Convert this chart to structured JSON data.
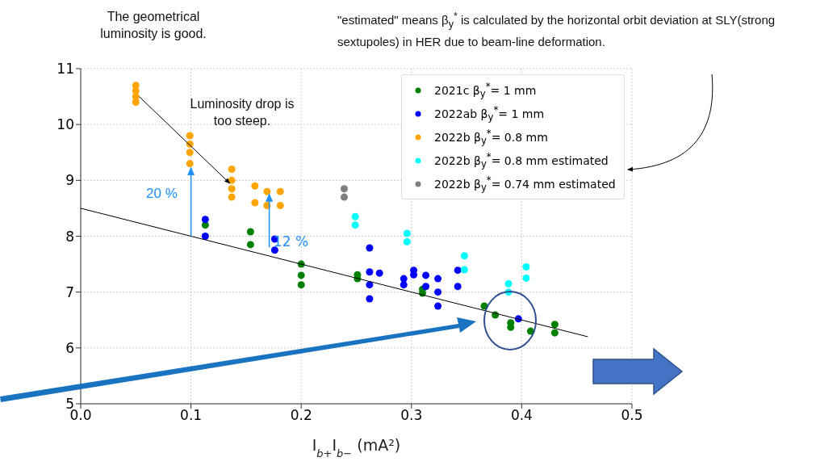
{
  "chart_data": {
    "type": "scatter",
    "xlabel": "I$_{b+}$I$_{b−}$  (mA²)",
    "xlim": [
      0,
      0.5
    ],
    "xticks": [
      {
        "value": 0,
        "label": "0.0"
      },
      0.1,
      0.2,
      0.3,
      0.4,
      0.5
    ],
    "ylim": [
      5,
      11
    ],
    "yticks": [
      5,
      6,
      7,
      8,
      9,
      10,
      11
    ],
    "grid": true,
    "legend": "top right",
    "marker": "circle",
    "annotations": [
      "The geometrical luminosity is good.",
      "\"estimated\" means β$_{y}$$^{*}$ is calculated by the horizontal orbit deviation at SLY(strong sextupoles) in HER due to beam-line deformation.",
      "Luminosity drop is too steep.",
      "20 %",
      {
        "text": "12 %",
        "x": 0.169,
        "y": 8.8
      }
    ],
    "series": [
      {
        "name": "2021c β$_{y}$$^{*}$= 1 mm",
        "color": "#008000",
        "x": [
          0.113,
          0.154,
          0.154,
          0.2,
          0.2,
          0.2,
          0.251,
          0.251,
          0.31,
          0.31,
          0.366,
          0.376,
          0.39,
          0.39,
          0.408,
          0.43,
          0.43
        ],
        "values": [
          8.2,
          8.08,
          7.85,
          7.5,
          7.3,
          7.13,
          7.31,
          7.24,
          7.05,
          6.98,
          6.75,
          6.59,
          6.45,
          6.37,
          6.3,
          6.42,
          6.27
        ]
      },
      {
        "name": "2022ab β$_{y}$$^{*}$= 1 mm",
        "color": "#0000ff",
        "x": [
          0.113,
          0.113,
          0.176,
          0.176,
          0.262,
          0.262,
          0.262,
          0.262,
          0.271,
          0.293,
          0.293,
          0.302,
          0.302,
          0.313,
          0.313,
          0.324,
          0.324,
          0.324,
          0.342,
          0.342,
          0.397
        ],
        "values": [
          8.3,
          8.0,
          7.95,
          7.75,
          7.79,
          7.36,
          7.13,
          6.88,
          7.34,
          7.24,
          7.13,
          7.39,
          7.31,
          7.3,
          7.1,
          7.24,
          7.0,
          6.75,
          7.39,
          7.1,
          6.52
        ]
      },
      {
        "name": "2022b β$_{y}$$^{*}$= 0.8 mm",
        "color": "#ffa500",
        "x": [
          0.05,
          0.05,
          0.05,
          0.05,
          0.099,
          0.099,
          0.099,
          0.099,
          0.137,
          0.137,
          0.137,
          0.137,
          0.158,
          0.158,
          0.169,
          0.169,
          0.181,
          0.181
        ],
        "values": [
          10.4,
          10.5,
          10.6,
          10.7,
          9.3,
          9.5,
          9.65,
          9.8,
          8.7,
          8.85,
          9.0,
          9.2,
          8.6,
          8.9,
          8.55,
          8.8,
          8.55,
          8.8
        ]
      },
      {
        "name": "2022b β$_{y}$$^{*}$= 0.8 mm estimated",
        "color": "#00ffff",
        "x": [
          0.249,
          0.249,
          0.296,
          0.296,
          0.348,
          0.348,
          0.388,
          0.388,
          0.404,
          0.404
        ],
        "values": [
          8.2,
          8.35,
          7.9,
          8.05,
          7.4,
          7.65,
          7.0,
          7.15,
          7.25,
          7.45
        ]
      },
      {
        "name": "2022b β$_{y}$$^{*}$= 0.74 mm estimated",
        "color": "#808080",
        "x": [
          0.239,
          0.239
        ],
        "values": [
          8.7,
          8.85
        ]
      },
      {
        "type": "line",
        "marker": "none",
        "color": "#000000",
        "x": [
          0,
          0.46
        ],
        "values": [
          8.5,
          6.2
        ]
      }
    ]
  }
}
